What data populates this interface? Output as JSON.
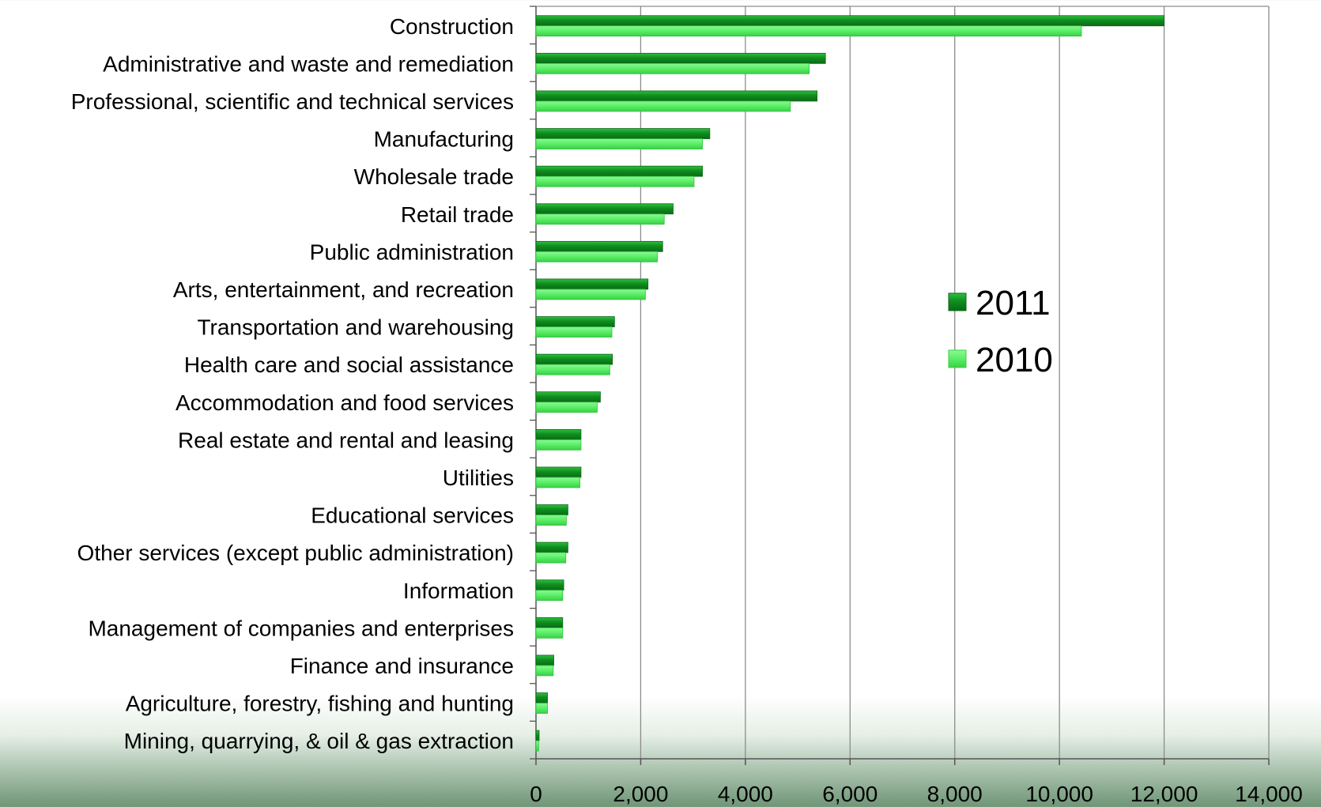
{
  "chart_data": {
    "type": "bar",
    "orientation": "horizontal",
    "categories": [
      "Construction",
      "Administrative and waste and remediation",
      "Professional, scientific and technical services",
      "Manufacturing",
      "Wholesale trade",
      "Retail trade",
      "Public administration",
      "Arts, entertainment, and recreation",
      "Transportation and warehousing",
      "Health care and social assistance",
      "Accommodation and food services",
      "Real estate and rental and leasing",
      "Utilities",
      "Educational services",
      "Other services (except public administration)",
      "Information",
      "Management of companies and enterprises",
      "Finance and insurance",
      "Agriculture, forestry, fishing and hunting",
      "Mining, quarrying, & oil & gas extraction"
    ],
    "series": [
      {
        "name": "2011",
        "color": "#0f8f1f",
        "values": [
          12000,
          5530,
          5370,
          3320,
          3180,
          2620,
          2420,
          2140,
          1500,
          1460,
          1230,
          860,
          860,
          610,
          610,
          530,
          510,
          340,
          220,
          60
        ]
      },
      {
        "name": "2010",
        "color": "#5ef06a",
        "values": [
          10420,
          5220,
          4860,
          3180,
          3020,
          2450,
          2320,
          2090,
          1450,
          1410,
          1170,
          860,
          840,
          580,
          570,
          510,
          510,
          330,
          220,
          50
        ]
      }
    ],
    "xlim": [
      0,
      14000
    ],
    "x_ticks": [
      "0",
      "2,000",
      "4,000",
      "6,000",
      "8,000",
      "10,000",
      "12,000",
      "14,000"
    ],
    "grid": "vertical",
    "legend_position": "center-right"
  }
}
